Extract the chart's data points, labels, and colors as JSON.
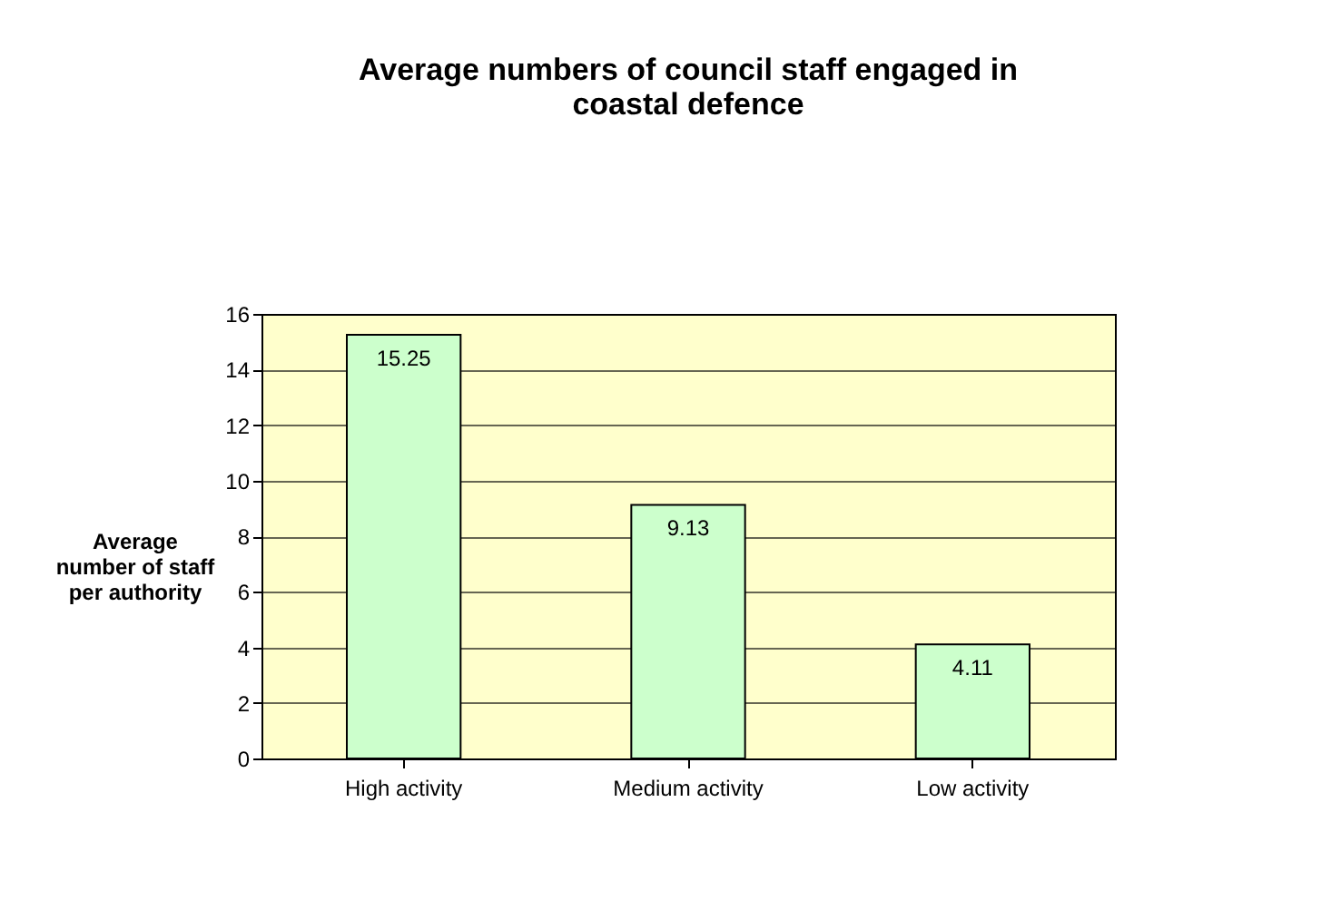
{
  "chart_data": {
    "type": "bar",
    "title": "Average numbers of council staff engaged in\ncoastal defence",
    "ylabel": "Average\nnumber of staff\nper authority",
    "categories": [
      "High activity",
      "Medium activity",
      "Low activity"
    ],
    "values": [
      15.25,
      9.13,
      4.11
    ],
    "color": "#ccffcc",
    "ylim": [
      0,
      16
    ],
    "yticks": [
      0,
      2,
      4,
      6,
      8,
      10,
      12,
      14,
      16
    ],
    "grid": "y",
    "data_labels": true
  }
}
